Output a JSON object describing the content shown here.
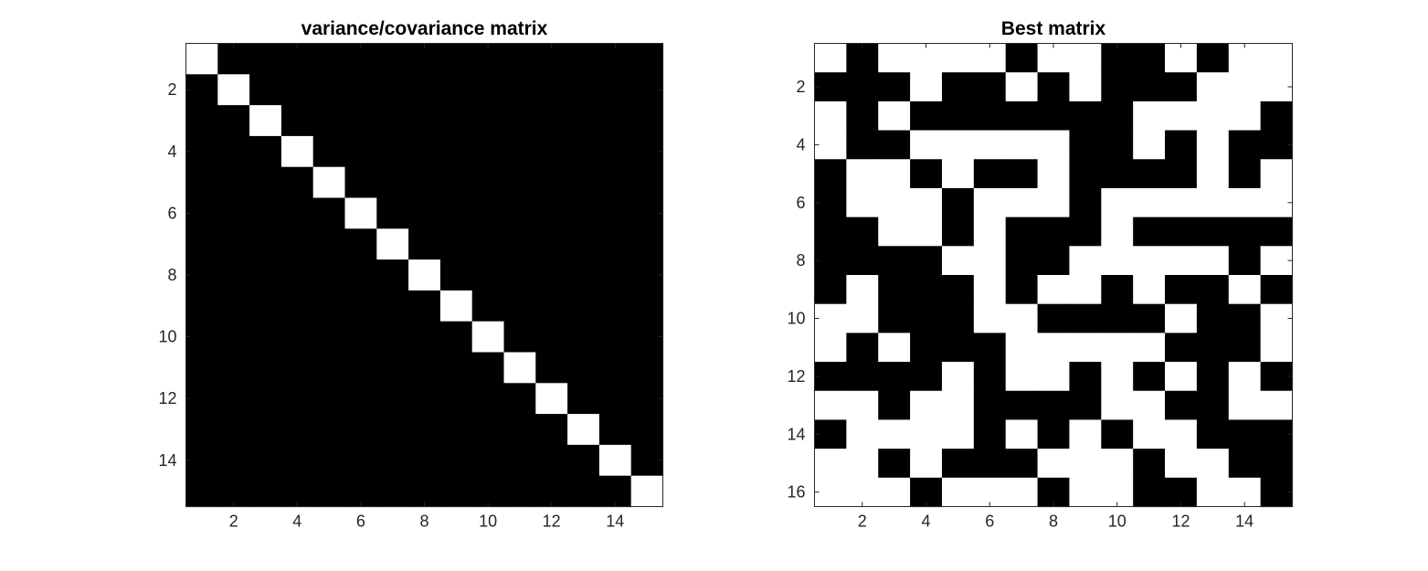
{
  "figure": {
    "background": "#ffffff",
    "colormap": {
      "0": "#000000",
      "1": "#ffffff"
    }
  },
  "chart_data": [
    {
      "type": "heatmap",
      "title": "variance/covariance matrix",
      "xlabel": "",
      "ylabel": "",
      "rows": 15,
      "cols": 15,
      "xlim": [
        0.5,
        15.5
      ],
      "ylim": [
        0.5,
        15.5
      ],
      "xticks": [
        2,
        4,
        6,
        8,
        10,
        12,
        14
      ],
      "yticks": [
        2,
        4,
        6,
        8,
        10,
        12,
        14
      ],
      "xtick_labels": [
        "2",
        "4",
        "6",
        "8",
        "10",
        "12",
        "14"
      ],
      "ytick_labels": [
        "2",
        "4",
        "6",
        "8",
        "10",
        "12",
        "14"
      ],
      "y_direction": "reverse",
      "grid": false,
      "matrix": [
        [
          1,
          0,
          0,
          0,
          0,
          0,
          0,
          0,
          0,
          0,
          0,
          0,
          0,
          0,
          0
        ],
        [
          0,
          1,
          0,
          0,
          0,
          0,
          0,
          0,
          0,
          0,
          0,
          0,
          0,
          0,
          0
        ],
        [
          0,
          0,
          1,
          0,
          0,
          0,
          0,
          0,
          0,
          0,
          0,
          0,
          0,
          0,
          0
        ],
        [
          0,
          0,
          0,
          1,
          0,
          0,
          0,
          0,
          0,
          0,
          0,
          0,
          0,
          0,
          0
        ],
        [
          0,
          0,
          0,
          0,
          1,
          0,
          0,
          0,
          0,
          0,
          0,
          0,
          0,
          0,
          0
        ],
        [
          0,
          0,
          0,
          0,
          0,
          1,
          0,
          0,
          0,
          0,
          0,
          0,
          0,
          0,
          0
        ],
        [
          0,
          0,
          0,
          0,
          0,
          0,
          1,
          0,
          0,
          0,
          0,
          0,
          0,
          0,
          0
        ],
        [
          0,
          0,
          0,
          0,
          0,
          0,
          0,
          1,
          0,
          0,
          0,
          0,
          0,
          0,
          0
        ],
        [
          0,
          0,
          0,
          0,
          0,
          0,
          0,
          0,
          1,
          0,
          0,
          0,
          0,
          0,
          0
        ],
        [
          0,
          0,
          0,
          0,
          0,
          0,
          0,
          0,
          0,
          1,
          0,
          0,
          0,
          0,
          0
        ],
        [
          0,
          0,
          0,
          0,
          0,
          0,
          0,
          0,
          0,
          0,
          1,
          0,
          0,
          0,
          0
        ],
        [
          0,
          0,
          0,
          0,
          0,
          0,
          0,
          0,
          0,
          0,
          0,
          1,
          0,
          0,
          0
        ],
        [
          0,
          0,
          0,
          0,
          0,
          0,
          0,
          0,
          0,
          0,
          0,
          0,
          1,
          0,
          0
        ],
        [
          0,
          0,
          0,
          0,
          0,
          0,
          0,
          0,
          0,
          0,
          0,
          0,
          0,
          1,
          0
        ],
        [
          0,
          0,
          0,
          0,
          0,
          0,
          0,
          0,
          0,
          0,
          0,
          0,
          0,
          0,
          1
        ]
      ]
    },
    {
      "type": "heatmap",
      "title": "Best matrix",
      "xlabel": "",
      "ylabel": "",
      "rows": 16,
      "cols": 15,
      "xlim": [
        0.5,
        15.5
      ],
      "ylim": [
        0.5,
        16.5
      ],
      "xticks": [
        2,
        4,
        6,
        8,
        10,
        12,
        14
      ],
      "yticks": [
        2,
        4,
        6,
        8,
        10,
        12,
        14,
        16
      ],
      "xtick_labels": [
        "2",
        "4",
        "6",
        "8",
        "10",
        "12",
        "14"
      ],
      "ytick_labels": [
        "2",
        "4",
        "6",
        "8",
        "10",
        "12",
        "14",
        "16"
      ],
      "y_direction": "reverse",
      "grid": false,
      "matrix": [
        [
          1,
          0,
          1,
          1,
          1,
          1,
          0,
          1,
          1,
          0,
          0,
          1,
          0,
          1,
          1
        ],
        [
          0,
          0,
          0,
          1,
          0,
          0,
          1,
          0,
          1,
          0,
          0,
          0,
          1,
          1,
          1
        ],
        [
          1,
          0,
          1,
          0,
          0,
          0,
          0,
          0,
          0,
          0,
          1,
          1,
          1,
          1,
          0
        ],
        [
          1,
          0,
          0,
          1,
          1,
          1,
          1,
          1,
          0,
          0,
          1,
          0,
          1,
          0,
          0
        ],
        [
          0,
          1,
          1,
          0,
          1,
          0,
          0,
          1,
          0,
          0,
          0,
          0,
          1,
          0,
          1
        ],
        [
          0,
          1,
          1,
          1,
          0,
          1,
          1,
          1,
          0,
          1,
          1,
          1,
          1,
          1,
          1
        ],
        [
          0,
          0,
          1,
          1,
          0,
          1,
          0,
          0,
          0,
          1,
          0,
          0,
          0,
          0,
          0
        ],
        [
          0,
          0,
          0,
          0,
          1,
          1,
          0,
          0,
          1,
          1,
          1,
          1,
          1,
          0,
          1
        ],
        [
          0,
          1,
          0,
          0,
          0,
          1,
          0,
          1,
          1,
          0,
          1,
          0,
          0,
          1,
          0
        ],
        [
          1,
          1,
          0,
          0,
          0,
          1,
          1,
          0,
          0,
          0,
          0,
          1,
          0,
          0,
          1
        ],
        [
          1,
          0,
          1,
          0,
          0,
          0,
          1,
          1,
          1,
          1,
          1,
          0,
          0,
          0,
          1
        ],
        [
          0,
          0,
          0,
          0,
          1,
          0,
          1,
          1,
          0,
          1,
          0,
          1,
          0,
          1,
          0
        ],
        [
          1,
          1,
          0,
          1,
          1,
          0,
          0,
          0,
          0,
          1,
          1,
          0,
          0,
          1,
          1
        ],
        [
          0,
          1,
          1,
          1,
          1,
          0,
          1,
          0,
          1,
          0,
          1,
          1,
          0,
          0,
          0
        ],
        [
          1,
          1,
          0,
          1,
          0,
          0,
          0,
          1,
          1,
          1,
          0,
          1,
          1,
          0,
          0
        ],
        [
          1,
          1,
          1,
          0,
          1,
          1,
          1,
          0,
          1,
          1,
          0,
          0,
          1,
          1,
          0
        ]
      ]
    }
  ]
}
